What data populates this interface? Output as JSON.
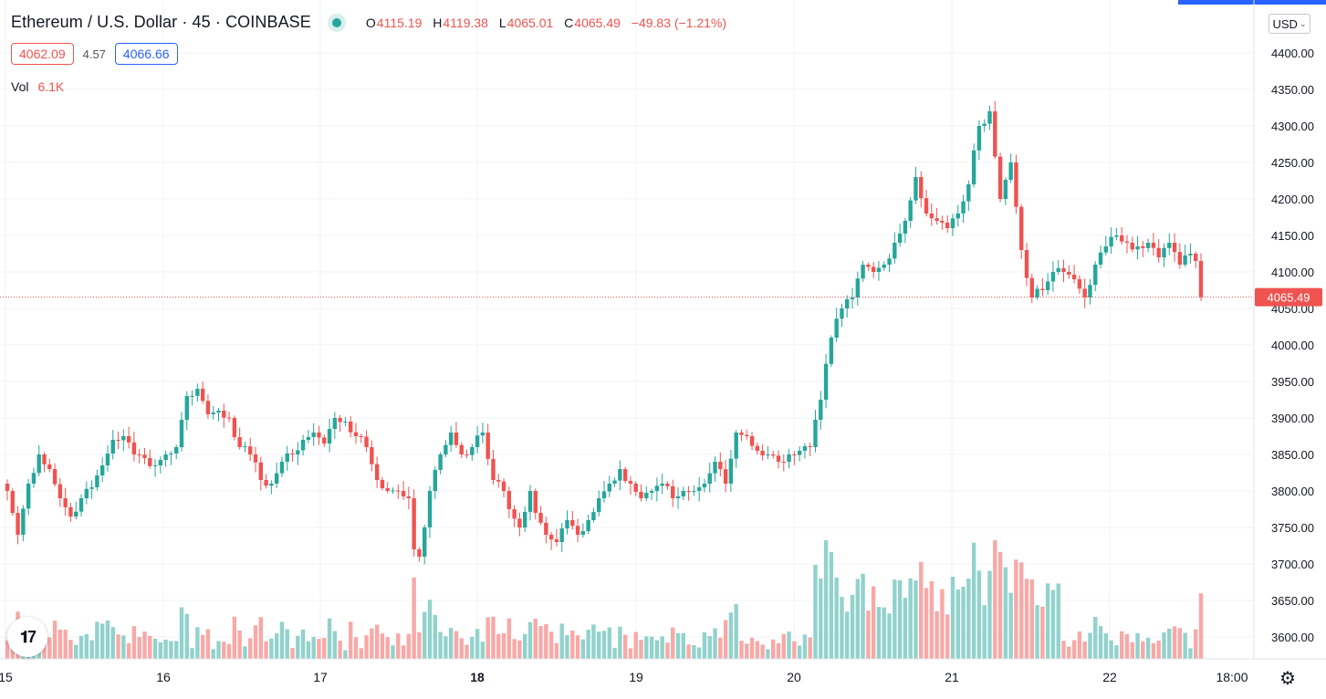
{
  "header": {
    "symbol": "Ethereum / U.S. Dollar · 45 · COINBASE",
    "ohlc": {
      "o_label": "O",
      "o": "4115.19",
      "h_label": "H",
      "h": "4119.38",
      "l_label": "L",
      "l": "4065.01",
      "c_label": "C",
      "c": "4065.49",
      "change": "−49.83 (−1.21%)"
    },
    "bid": "4062.09",
    "spread": "4.57",
    "ask": "4066.66",
    "vol_label": "Vol",
    "vol_value": "6.1K",
    "currency": "USD"
  },
  "colors": {
    "up": "#26a69a",
    "down": "#ef5350",
    "up_vol": "#92d2cc",
    "down_vol": "#f7a9a7",
    "grid": "#f0f3fa",
    "accent": "#2962ff"
  },
  "icons": {
    "logo": "tradingview-logo-icon",
    "settings": "gear-icon",
    "dropdown": "chevron-down-icon"
  },
  "chart_data": {
    "type": "candlestick",
    "y_axis": {
      "min": 3580,
      "max": 4420,
      "ticks": [
        "4400.00",
        "4350.00",
        "4300.00",
        "4250.00",
        "4200.00",
        "4150.00",
        "4100.00",
        "4050.00",
        "4000.00",
        "3950.00",
        "3900.00",
        "3850.00",
        "3800.00",
        "3750.00",
        "3700.00",
        "3650.00",
        "3600.00"
      ]
    },
    "x_axis": {
      "ticks": [
        "15",
        "16",
        "17",
        "18",
        "19",
        "20",
        "21",
        "22",
        "18:00"
      ],
      "bold": [
        "18"
      ]
    },
    "last_price": 4065.49,
    "last_price_label": "4065.49",
    "anchors": [
      [
        0,
        3800
      ],
      [
        2,
        3740
      ],
      [
        4,
        3810
      ],
      [
        6,
        3850
      ],
      [
        8,
        3830
      ],
      [
        10,
        3790
      ],
      [
        12,
        3765
      ],
      [
        14,
        3790
      ],
      [
        16,
        3805
      ],
      [
        18,
        3835
      ],
      [
        20,
        3870
      ],
      [
        22,
        3875
      ],
      [
        24,
        3850
      ],
      [
        26,
        3845
      ],
      [
        28,
        3835
      ],
      [
        30,
        3850
      ],
      [
        32,
        3860
      ],
      [
        34,
        3930
      ],
      [
        36,
        3940
      ],
      [
        38,
        3905
      ],
      [
        40,
        3910
      ],
      [
        42,
        3900
      ],
      [
        44,
        3860
      ],
      [
        46,
        3850
      ],
      [
        48,
        3815
      ],
      [
        50,
        3810
      ],
      [
        52,
        3840
      ],
      [
        54,
        3850
      ],
      [
        56,
        3870
      ],
      [
        58,
        3880
      ],
      [
        60,
        3865
      ],
      [
        62,
        3900
      ],
      [
        64,
        3895
      ],
      [
        66,
        3875
      ],
      [
        68,
        3860
      ],
      [
        70,
        3815
      ],
      [
        72,
        3800
      ],
      [
        74,
        3800
      ],
      [
        76,
        3790
      ],
      [
        77,
        3720
      ],
      [
        78,
        3710
      ],
      [
        80,
        3800
      ],
      [
        82,
        3850
      ],
      [
        84,
        3880
      ],
      [
        86,
        3850
      ],
      [
        88,
        3860
      ],
      [
        90,
        3880
      ],
      [
        92,
        3815
      ],
      [
        94,
        3800
      ],
      [
        95,
        3775
      ],
      [
        97,
        3750
      ],
      [
        99,
        3800
      ],
      [
        100,
        3770
      ],
      [
        102,
        3740
      ],
      [
        104,
        3730
      ],
      [
        106,
        3760
      ],
      [
        108,
        3740
      ],
      [
        110,
        3760
      ],
      [
        112,
        3790
      ],
      [
        114,
        3810
      ],
      [
        116,
        3830
      ],
      [
        118,
        3810
      ],
      [
        120,
        3790
      ],
      [
        122,
        3800
      ],
      [
        124,
        3810
      ],
      [
        126,
        3790
      ],
      [
        128,
        3800
      ],
      [
        130,
        3800
      ],
      [
        132,
        3810
      ],
      [
        134,
        3840
      ],
      [
        136,
        3810
      ],
      [
        138,
        3880
      ],
      [
        140,
        3875
      ],
      [
        142,
        3855
      ],
      [
        144,
        3850
      ],
      [
        146,
        3840
      ],
      [
        148,
        3850
      ],
      [
        150,
        3855
      ],
      [
        152,
        3860
      ],
      [
        154,
        3925
      ],
      [
        156,
        4010
      ],
      [
        158,
        4050
      ],
      [
        160,
        4065
      ],
      [
        162,
        4110
      ],
      [
        164,
        4100
      ],
      [
        166,
        4110
      ],
      [
        168,
        4140
      ],
      [
        170,
        4170
      ],
      [
        172,
        4230
      ],
      [
        174,
        4180
      ],
      [
        176,
        4170
      ],
      [
        178,
        4160
      ],
      [
        180,
        4180
      ],
      [
        182,
        4220
      ],
      [
        184,
        4300
      ],
      [
        186,
        4320
      ],
      [
        188,
        4200
      ],
      [
        190,
        4250
      ],
      [
        192,
        4130
      ],
      [
        194,
        4065
      ],
      [
        196,
        4075
      ],
      [
        198,
        4100
      ],
      [
        200,
        4100
      ],
      [
        202,
        4090
      ],
      [
        204,
        4065
      ],
      [
        206,
        4110
      ],
      [
        208,
        4135
      ],
      [
        210,
        4150
      ],
      [
        212,
        4140
      ],
      [
        214,
        4135
      ],
      [
        216,
        4140
      ],
      [
        218,
        4120
      ],
      [
        220,
        4140
      ],
      [
        222,
        4110
      ],
      [
        224,
        4125
      ],
      [
        225,
        4115
      ],
      [
        226,
        4065
      ]
    ],
    "volume_note": "Volume bars along chart bottom, peak near 21, ~6.1K latest"
  }
}
